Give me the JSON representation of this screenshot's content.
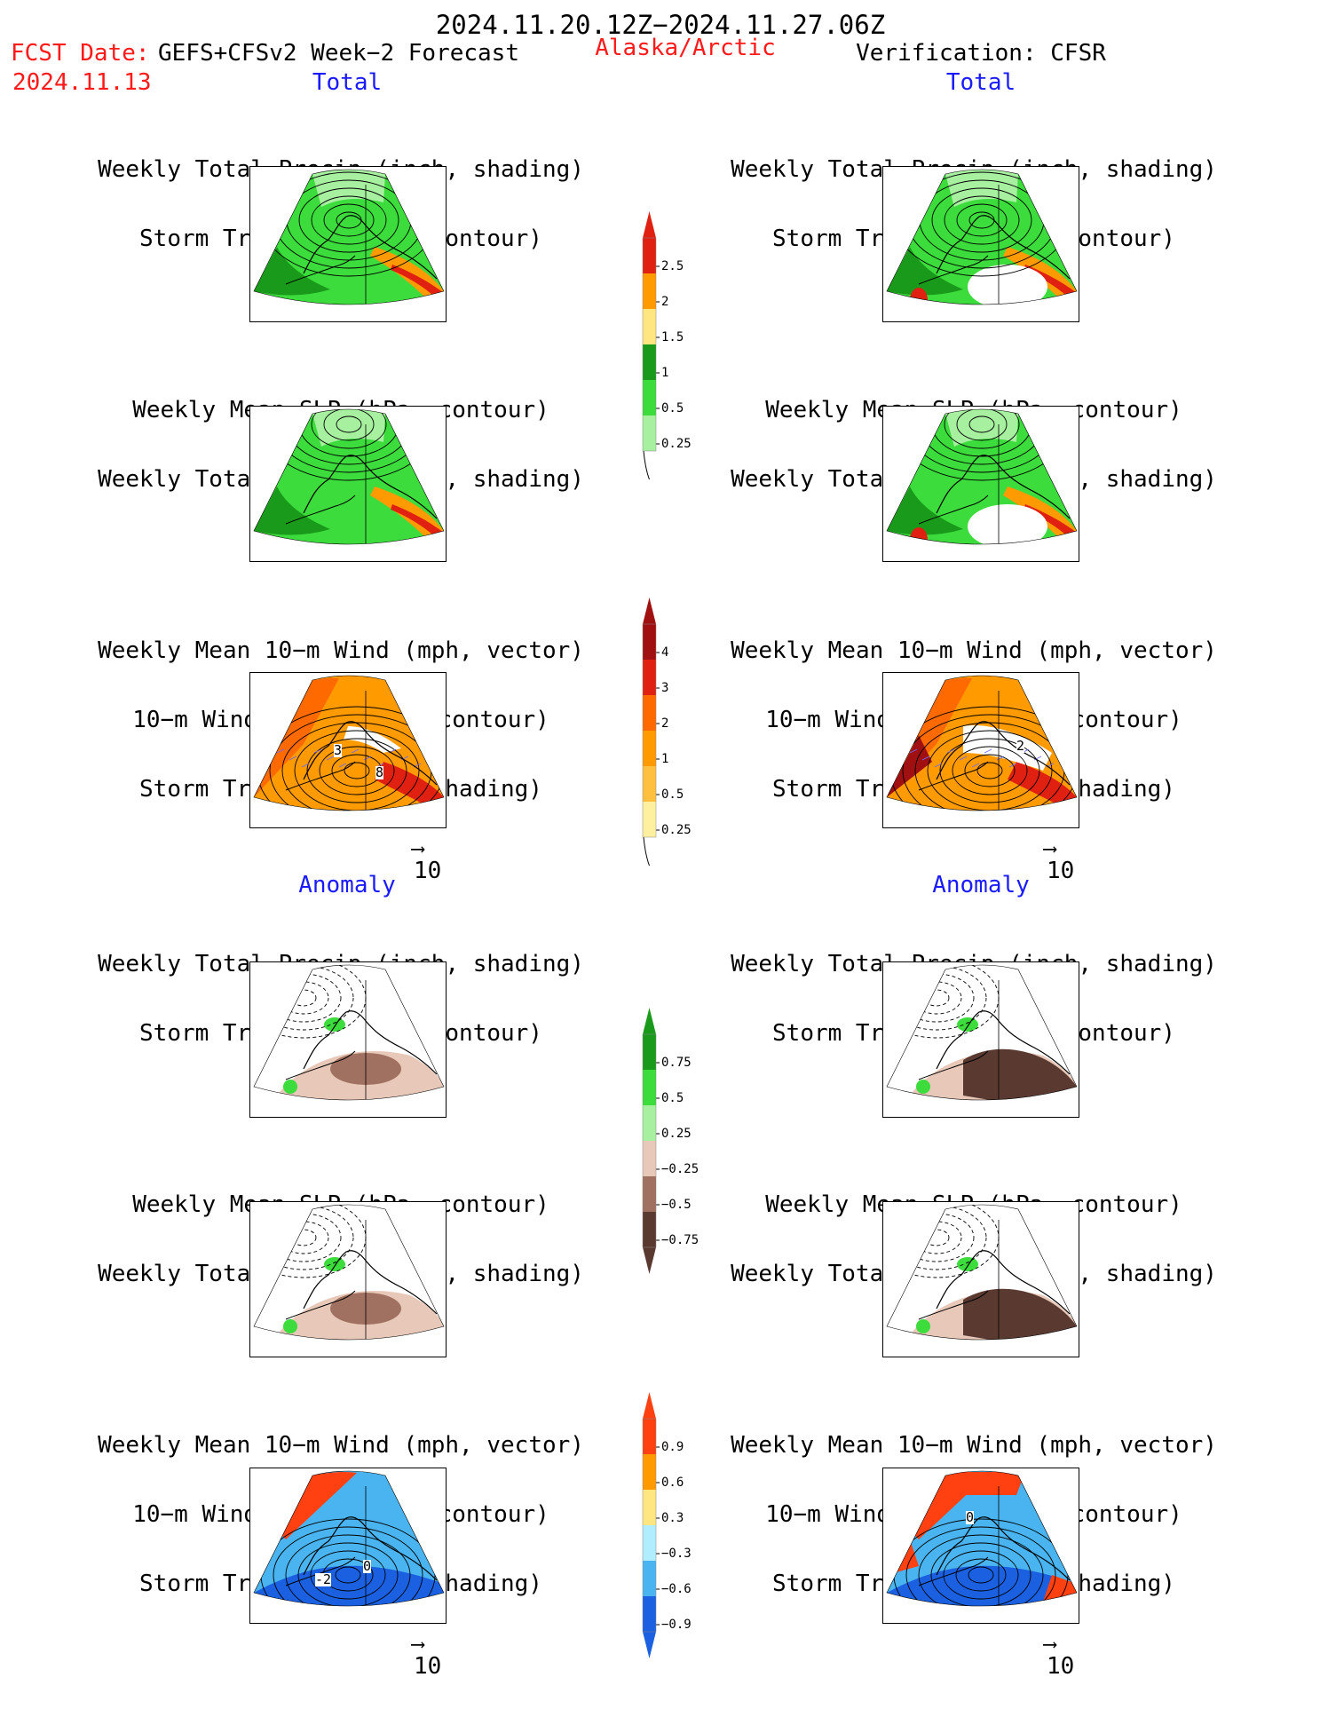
{
  "header": {
    "date_range": "2024.11.20.12Z−2024.11.27.06Z",
    "fcst_label": "FCST Date:",
    "fcst_model": "GEFS+CFSv2 Week−2 Forecast",
    "fcst_date": "2024.11.13",
    "region": "Alaska/Arctic",
    "verification": "Verification: CFSR"
  },
  "sections": {
    "total": "Total",
    "anomaly": "Anomaly"
  },
  "panel_titles": {
    "precip_storm": [
      "Weekly Total Precip (inch, shading)",
      "Storm Track Density (contour)"
    ],
    "slp_precip": [
      "Weekly Mean SLP (hPa, contour)",
      "Weekly Total Precip (inch, shading)"
    ],
    "wind_storm": [
      "Weekly Mean 10−m Wind (mph, vector)",
      "10−m Wind Speed (mph, contour)",
      "Storm Track Density (shading)"
    ]
  },
  "vector_ref": "10",
  "colorbars": {
    "precip_total": {
      "labels": [
        "2.5",
        "2",
        "1.5",
        "1",
        "0.5",
        "0.25"
      ],
      "colors": [
        "#e02010",
        "#ff9a00",
        "#ffe680",
        "#1a9a1a",
        "#3cdc3c",
        "#a6f0a0"
      ]
    },
    "storm_total": {
      "labels": [
        "4",
        "3",
        "2",
        "1",
        "0.5",
        "0.25"
      ],
      "colors": [
        "#a01010",
        "#e02010",
        "#ff6a00",
        "#ff9a00",
        "#ffc040",
        "#fff0a0"
      ]
    },
    "precip_anom": {
      "labels": [
        "0.75",
        "0.5",
        "0.25",
        "−0.25",
        "−0.5",
        "−0.75"
      ],
      "colors": [
        "#1a9a1a",
        "#3cdc3c",
        "#a6f0a0",
        "#e8c8b8",
        "#a07060",
        "#5a3a30"
      ]
    },
    "storm_anom": {
      "labels": [
        "0.9",
        "0.6",
        "0.3",
        "−0.3",
        "−0.6",
        "−0.9"
      ],
      "colors": [
        "#ff4010",
        "#ff9a00",
        "#ffe680",
        "#b0eeff",
        "#4ab4f0",
        "#1a60e0"
      ]
    }
  },
  "contour_labels": {
    "left_wind_total": [
      "3",
      "8"
    ],
    "right_wind_total": [
      "2"
    ],
    "left_wind_anom": [
      "-2",
      "0"
    ],
    "right_wind_anom": [
      "0"
    ]
  }
}
